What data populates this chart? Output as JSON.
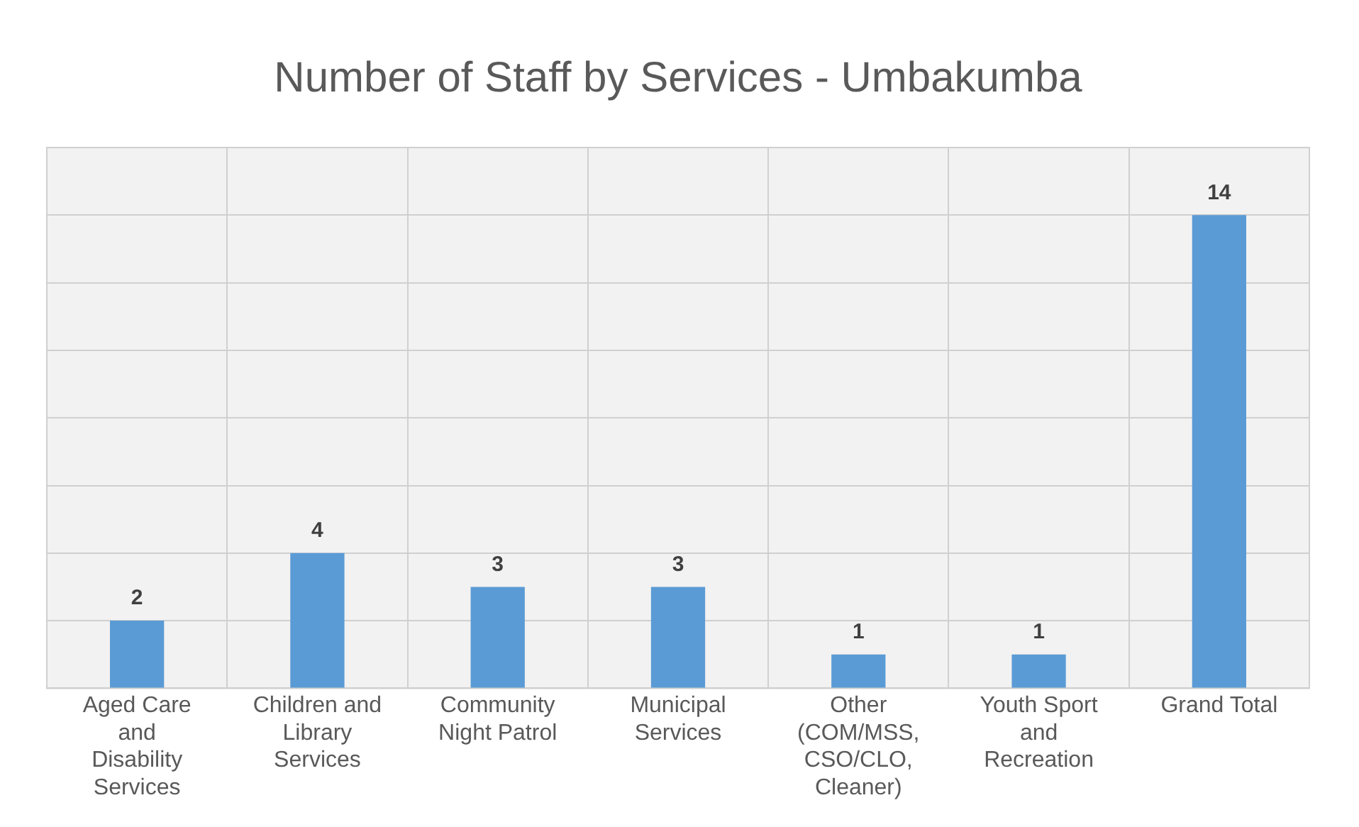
{
  "chart_data": {
    "type": "bar",
    "title": "Number of Staff by Services - Umbakumba",
    "categories": [
      "Aged Care and Disability Services",
      "Children and Library Services",
      "Community Night Patrol",
      "Municipal Services",
      "Other (COM/MSS, CSO/CLO, Cleaner)",
      "Youth Sport and Recreation",
      "Grand Total"
    ],
    "values": [
      2,
      4,
      3,
      3,
      1,
      1,
      14
    ],
    "color": "#5b9bd5",
    "ylim": [
      0,
      16
    ],
    "yticks": [
      {
        "value": 0,
        "label": null
      },
      {
        "value": 2,
        "label": null
      },
      {
        "value": 4,
        "label": null
      },
      {
        "value": 6,
        "label": null
      },
      {
        "value": 8,
        "label": null
      },
      {
        "value": 10,
        "label": null
      },
      {
        "value": 12,
        "label": null
      },
      {
        "value": 14,
        "label": null
      },
      {
        "value": 16,
        "label": null
      }
    ],
    "tick_labels": "x",
    "grid": true,
    "data_labels": true,
    "legend": false
  }
}
